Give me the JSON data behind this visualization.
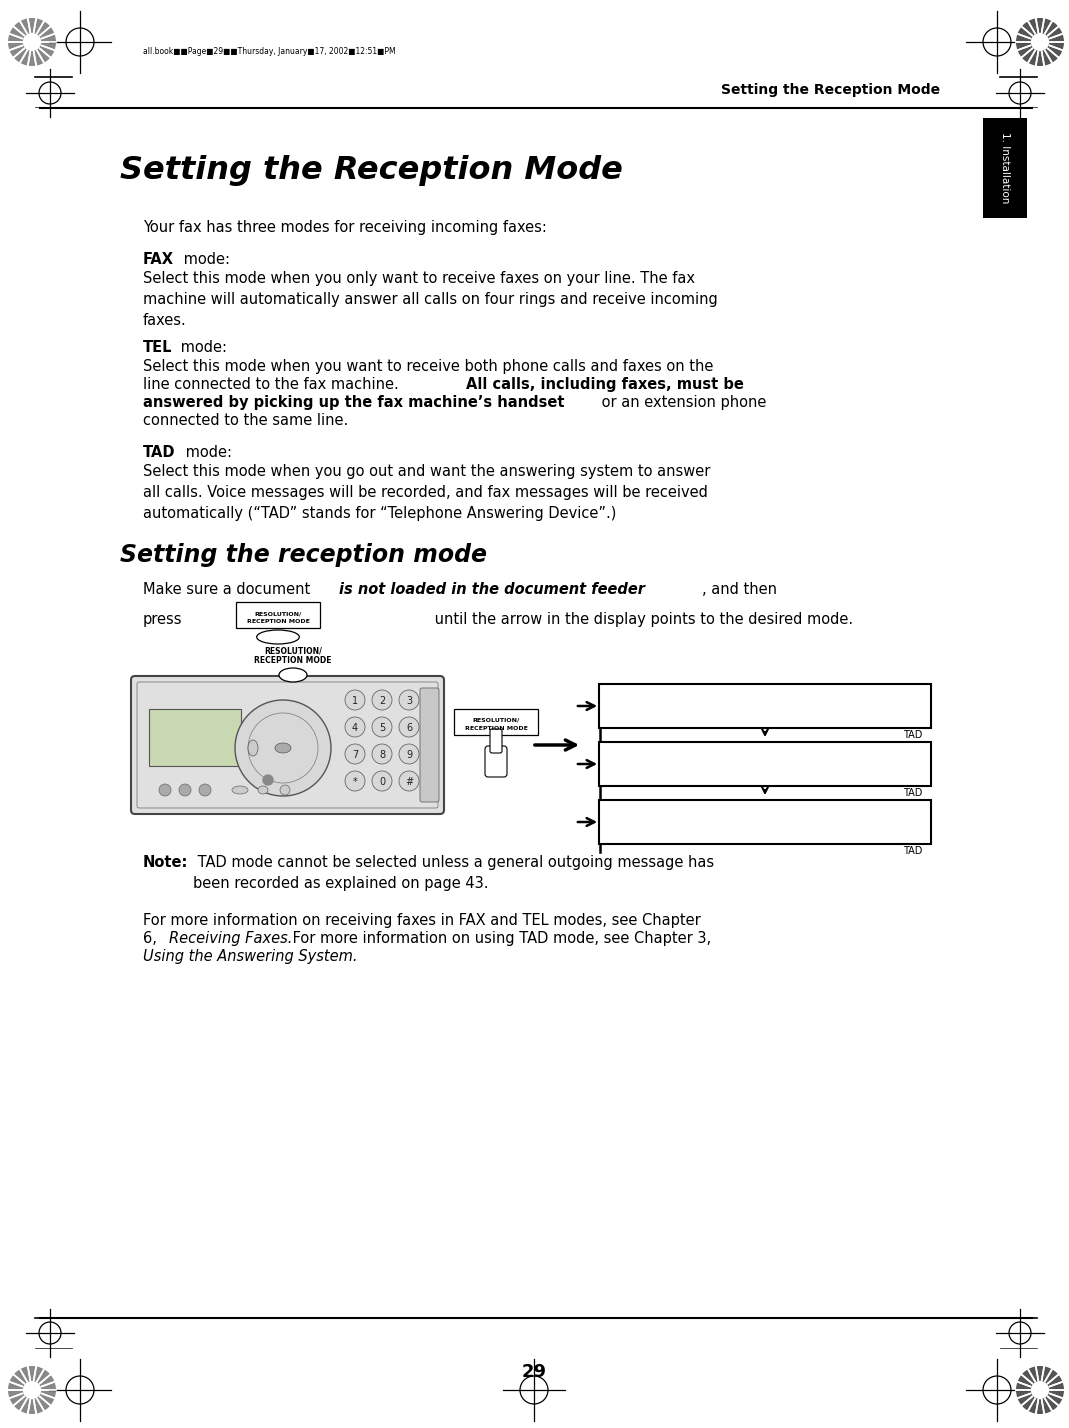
{
  "bg_color": "#ffffff",
  "header_text": "Setting the Reception Mode",
  "tab_label": "1. Installation",
  "chapter_title": "Setting the Reception Mode",
  "intro_text": "Your fax has three modes for receiving incoming faxes:",
  "fax_desc": "Select this mode when you only want to receive faxes on your line. The fax\nmachine will automatically answer all calls on four rings and receive incoming\nfaxes.",
  "tel_desc1": "Select this mode when you want to receive both phone calls and faxes on the",
  "tel_desc2": "line connected to the fax machine. ",
  "tel_desc2b": "All calls, including faxes, must be",
  "tel_desc3": "answered by picking up the fax machine’s handset",
  "tel_desc3b": " or an extension phone",
  "tel_desc4": "connected to the same line.",
  "tad_desc": "Select this mode when you go out and want the answering system to answer\nall calls. Voice messages will be recorded, and fax messages will be received\nautomatically (“TAD” stands for “Telephone Answering Device”.)",
  "subtitle": "Setting the reception mode",
  "note_text": " TAD mode cannot be selected unless a general outgoing message has\nbeen recorded as explained on page 43.",
  "for_more1a": "For more information on receiving faxes in FAX and TEL modes, see Chapter",
  "for_more1b": "6, ",
  "for_more_italic1": "Receiving Faxes.",
  "for_more2": " For more information on using TAD mode, see Chapter 3,",
  "for_more_italic2": "Using the Answering System.",
  "page_number": "29",
  "footer_text": "all.book■■Page■29■■Thursday, January■17, 2002■12:51■PM"
}
